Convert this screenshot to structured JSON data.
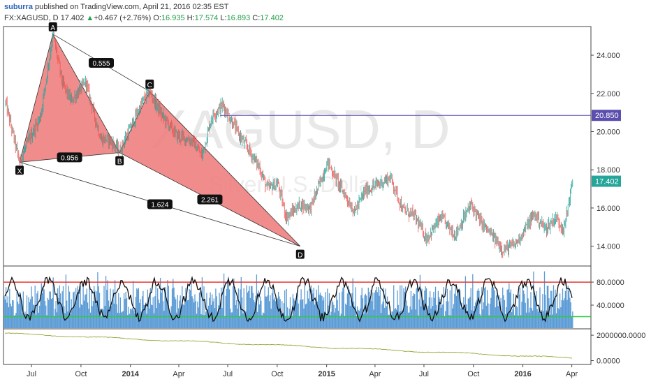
{
  "header": {
    "author": "suburra",
    "published": "published on TradingView.com, April 21, 2016 02:35 EST",
    "symbol": "FX:XAGUSD, D",
    "last": "17.402",
    "change_arrow": "▲",
    "change": "+0.467 (+2.76%)",
    "open_label": "O:",
    "open": "16.935",
    "high_label": "H:",
    "high": "17.574",
    "low_label": "L:",
    "low": "16.893",
    "close_label": "C:",
    "close": "17.402"
  },
  "watermark": {
    "symbol": "XAGUSD, D",
    "description": "Silver/U.S. Dollar"
  },
  "colors": {
    "bull": "#26a69a",
    "bear": "#ef5350",
    "pattern_fill": "#f08080",
    "hline": "#5b4fae",
    "rsi_upper": "#e53935",
    "rsi_lower": "#2ecc40",
    "volume": "#5b9bd5",
    "lower_line": "#8a9a20"
  },
  "chart_data": [
    {
      "type": "candlestick",
      "name": "price",
      "ylim": [
        13.0,
        25.5
      ],
      "yticks": [
        "24.000",
        "22.000",
        "20.000",
        "18.000",
        "16.000",
        "14.000"
      ],
      "ytick_values": [
        24,
        22,
        20,
        18,
        16,
        14
      ],
      "x_ticks": [
        "Jul",
        "Oct",
        "2014",
        "Apr",
        "Jul",
        "Oct",
        "2015",
        "Apr",
        "Jul",
        "Oct",
        "2016",
        "Apr"
      ],
      "x_tick_bold": [
        false,
        false,
        true,
        false,
        false,
        false,
        true,
        false,
        false,
        false,
        true,
        false
      ],
      "x_tick_dates": [
        "2013-07-01",
        "2013-10-01",
        "2014-01-01",
        "2014-04-01",
        "2014-07-01",
        "2014-10-01",
        "2015-01-01",
        "2015-04-01",
        "2015-07-01",
        "2015-10-01",
        "2016-01-01",
        "2016-04-01"
      ],
      "anchors": [
        [
          "2013-06-01",
          21.5
        ],
        [
          "2013-06-27",
          18.4
        ],
        [
          "2013-07-15",
          19.6
        ],
        [
          "2013-08-05",
          20.8
        ],
        [
          "2013-08-28",
          25.1
        ],
        [
          "2013-09-15",
          22.5
        ],
        [
          "2013-10-01",
          21.6
        ],
        [
          "2013-10-28",
          22.6
        ],
        [
          "2013-11-25",
          19.6
        ],
        [
          "2013-12-10",
          19.6
        ],
        [
          "2013-12-30",
          19.0
        ],
        [
          "2014-02-15",
          21.8
        ],
        [
          "2014-02-24",
          22.1
        ],
        [
          "2014-03-20",
          20.8
        ],
        [
          "2014-04-15",
          19.8
        ],
        [
          "2014-05-15",
          19.5
        ],
        [
          "2014-06-01",
          18.7
        ],
        [
          "2014-06-20",
          20.8
        ],
        [
          "2014-07-10",
          21.4
        ],
        [
          "2014-08-10",
          19.8
        ],
        [
          "2014-09-15",
          18.2
        ],
        [
          "2014-10-01",
          17.0
        ],
        [
          "2014-10-20",
          17.3
        ],
        [
          "2014-11-05",
          15.5
        ],
        [
          "2014-12-01",
          16.2
        ],
        [
          "2014-12-20",
          16.0
        ],
        [
          "2015-01-21",
          18.4
        ],
        [
          "2015-02-10",
          17.3
        ],
        [
          "2015-03-12",
          15.8
        ],
        [
          "2015-04-01",
          16.9
        ],
        [
          "2015-05-18",
          17.6
        ],
        [
          "2015-06-10",
          15.9
        ],
        [
          "2015-07-01",
          15.6
        ],
        [
          "2015-07-24",
          14.4
        ],
        [
          "2015-08-20",
          15.5
        ],
        [
          "2015-09-15",
          14.6
        ],
        [
          "2015-10-15",
          16.2
        ],
        [
          "2015-11-01",
          15.3
        ],
        [
          "2015-12-14",
          13.8
        ],
        [
          "2016-01-05",
          14.1
        ],
        [
          "2016-02-10",
          15.7
        ],
        [
          "2016-03-01",
          14.9
        ],
        [
          "2016-03-20",
          15.5
        ],
        [
          "2016-04-05",
          14.9
        ],
        [
          "2016-04-15",
          16.6
        ],
        [
          "2016-04-21",
          17.4
        ]
      ],
      "price_lines": [
        {
          "label": "20.850",
          "value": 20.85,
          "color": "#5b4fae"
        },
        {
          "label": "17.402",
          "value": 17.402,
          "color": "#26a69a"
        }
      ],
      "harmonic_pattern": {
        "points": [
          {
            "label": "X",
            "date": "2013-06-27",
            "value": 18.4
          },
          {
            "label": "A",
            "date": "2013-08-28",
            "value": 25.1
          },
          {
            "label": "B",
            "date": "2013-12-30",
            "value": 18.9
          },
          {
            "label": "C",
            "date": "2014-02-24",
            "value": 22.1
          },
          {
            "label": "D",
            "date": "2014-12-01",
            "value": 14.0
          }
        ],
        "ratios": [
          "0.555",
          "0.956",
          "1.624",
          "2.261"
        ]
      }
    },
    {
      "type": "line",
      "name": "oscillator",
      "ylim": [
        0,
        108
      ],
      "yticks": [
        "80.0000",
        "40.0000"
      ],
      "ytick_values": [
        80,
        40
      ],
      "upper_level": 80,
      "lower_level": 20
    },
    {
      "type": "line",
      "name": "lower-indicator",
      "ylim": [
        -300000,
        2500000
      ],
      "yticks": [
        "2000000.0000",
        "0.0000"
      ],
      "ytick_values": [
        2000000,
        0
      ]
    }
  ]
}
